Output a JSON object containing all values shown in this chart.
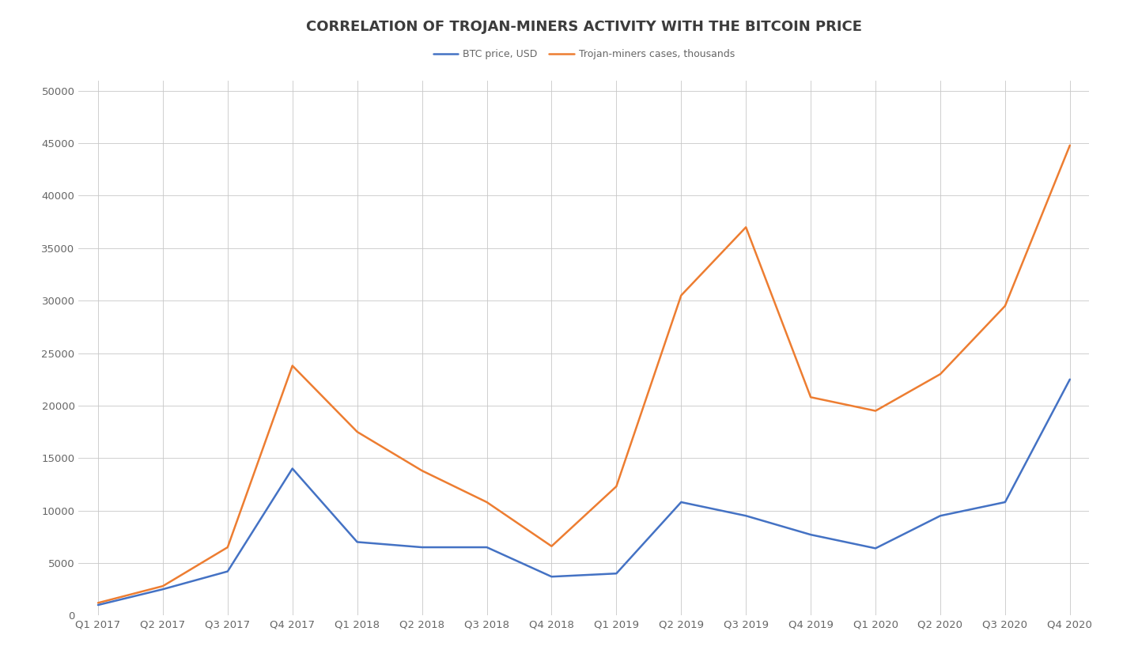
{
  "title": "CORRELATION OF TROJAN-MINERS ACTIVITY WITH THE BITCOIN PRICE",
  "categories": [
    "Q1 2017",
    "Q2 2017",
    "Q3 2017",
    "Q4 2017",
    "Q1 2018",
    "Q2 2018",
    "Q3 2018",
    "Q4 2018",
    "Q1 2019",
    "Q2 2019",
    "Q3 2019",
    "Q4 2019",
    "Q1 2020",
    "Q2 2020",
    "Q3 2020",
    "Q4 2020"
  ],
  "btc_price": [
    1000,
    2500,
    4200,
    14000,
    7000,
    6500,
    6500,
    3700,
    4000,
    10800,
    9500,
    7700,
    6400,
    9500,
    10800,
    22500
  ],
  "trojan_cases": [
    1200,
    2800,
    6500,
    23800,
    17500,
    13800,
    10800,
    6600,
    12300,
    30500,
    37000,
    20800,
    19500,
    23000,
    29500,
    44800
  ],
  "btc_color": "#4472C4",
  "trojan_color": "#ED7D31",
  "legend_btc": "BTC price, USD",
  "legend_trojan": "Trojan-miners cases, thousands",
  "ylim": [
    0,
    51000
  ],
  "yticks": [
    0,
    5000,
    10000,
    15000,
    20000,
    25000,
    30000,
    35000,
    40000,
    45000,
    50000
  ],
  "bg_color": "#FFFFFF",
  "grid_color": "#C8C8C8",
  "title_fontsize": 13,
  "legend_fontsize": 9,
  "tick_fontsize": 9.5,
  "line_width": 1.8,
  "title_color": "#3C3C3C",
  "tick_color": "#666666"
}
